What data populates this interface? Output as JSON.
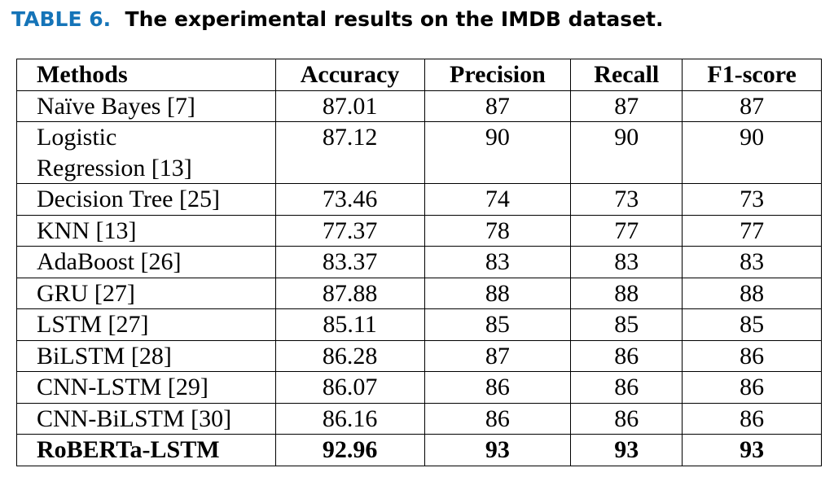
{
  "caption": {
    "label": "TABLE 6.",
    "text": "The experimental results on the IMDB dataset."
  },
  "table": {
    "headers": [
      "Methods",
      "Accuracy",
      "Precision",
      "Recall",
      "F1-score"
    ],
    "rows": [
      {
        "method_line1": "Naïve Bayes [7]",
        "method_line2": "",
        "accuracy": "87.01",
        "precision": "87",
        "recall": "87",
        "f1": "87"
      },
      {
        "method_line1": "Logistic",
        "method_line2": "Regression [13]",
        "accuracy": "87.12",
        "precision": "90",
        "recall": "90",
        "f1": "90"
      },
      {
        "method_line1": "Decision Tree [25]",
        "method_line2": "",
        "accuracy": "73.46",
        "precision": "74",
        "recall": "73",
        "f1": "73"
      },
      {
        "method_line1": "KNN [13]",
        "method_line2": "",
        "accuracy": "77.37",
        "precision": "78",
        "recall": "77",
        "f1": "77"
      },
      {
        "method_line1": "AdaBoost [26]",
        "method_line2": "",
        "accuracy": "83.37",
        "precision": "83",
        "recall": "83",
        "f1": "83"
      },
      {
        "method_line1": "GRU [27]",
        "method_line2": "",
        "accuracy": "87.88",
        "precision": "88",
        "recall": "88",
        "f1": "88"
      },
      {
        "method_line1": "LSTM [27]",
        "method_line2": "",
        "accuracy": "85.11",
        "precision": "85",
        "recall": "85",
        "f1": "85"
      },
      {
        "method_line1": "BiLSTM [28]",
        "method_line2": "",
        "accuracy": "86.28",
        "precision": "87",
        "recall": "86",
        "f1": "86"
      },
      {
        "method_line1": "CNN-LSTM [29]",
        "method_line2": "",
        "accuracy": "86.07",
        "precision": "86",
        "recall": "86",
        "f1": "86"
      },
      {
        "method_line1": "CNN-BiLSTM [30]",
        "method_line2": "",
        "accuracy": "86.16",
        "precision": "86",
        "recall": "86",
        "f1": "86"
      },
      {
        "method_line1": "RoBERTa-LSTM",
        "method_line2": "",
        "accuracy": "92.96",
        "precision": "93",
        "recall": "93",
        "f1": "93"
      }
    ]
  }
}
